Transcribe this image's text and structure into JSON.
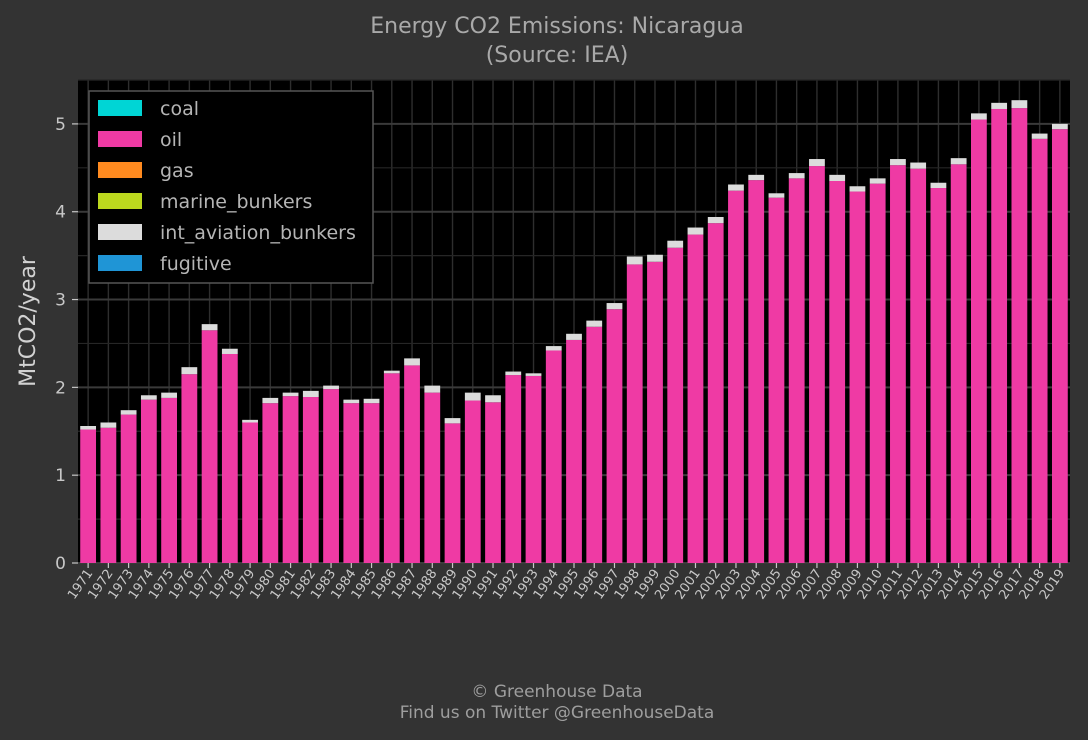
{
  "title": {
    "line1": "Energy CO2 Emissions: Nicaragua",
    "line2": "(Source: IEA)"
  },
  "credits": {
    "line1": "© Greenhouse Data",
    "line2": "Find us on Twitter @GreenhouseData"
  },
  "colors": {
    "background": "#333333",
    "plot_background": "#000000",
    "grid": "#2e2e2e"
  },
  "chart_data": {
    "type": "bar",
    "stacked": true,
    "ylabel": "MtCO2/year",
    "xlabel": "",
    "ylim": [
      0,
      5.5
    ],
    "yticks": [
      0,
      1,
      2,
      3,
      4,
      5
    ],
    "grid": true,
    "legend_position": "top-left",
    "categories": [
      "1971",
      "1972",
      "1973",
      "1974",
      "1975",
      "1976",
      "1977",
      "1978",
      "1979",
      "1980",
      "1981",
      "1982",
      "1983",
      "1984",
      "1985",
      "1986",
      "1987",
      "1988",
      "1989",
      "1990",
      "1991",
      "1992",
      "1993",
      "1994",
      "1995",
      "1996",
      "1997",
      "1998",
      "1999",
      "2000",
      "2001",
      "2002",
      "2003",
      "2004",
      "2005",
      "2006",
      "2007",
      "2008",
      "2009",
      "2010",
      "2011",
      "2012",
      "2013",
      "2014",
      "2015",
      "2016",
      "2017",
      "2018",
      "2019"
    ],
    "series": [
      {
        "name": "coal",
        "color": "#00d5d5",
        "values": [
          0,
          0,
          0,
          0,
          0,
          0,
          0,
          0,
          0,
          0,
          0,
          0,
          0,
          0,
          0,
          0,
          0,
          0,
          0,
          0,
          0,
          0,
          0,
          0,
          0,
          0,
          0,
          0,
          0,
          0,
          0,
          0,
          0,
          0,
          0,
          0,
          0,
          0,
          0,
          0,
          0,
          0,
          0,
          0,
          0,
          0,
          0,
          0,
          0
        ]
      },
      {
        "name": "oil",
        "color": "#ef3aa4",
        "values": [
          1.52,
          1.54,
          1.69,
          1.86,
          1.88,
          2.15,
          2.65,
          2.38,
          1.6,
          1.82,
          1.9,
          1.89,
          1.98,
          1.82,
          1.82,
          2.16,
          2.25,
          1.94,
          1.59,
          1.85,
          1.83,
          2.14,
          2.13,
          2.42,
          2.54,
          2.69,
          2.89,
          3.4,
          3.43,
          3.59,
          3.74,
          3.87,
          4.24,
          4.36,
          4.16,
          4.38,
          4.52,
          4.35,
          4.23,
          4.32,
          4.53,
          4.49,
          4.27,
          4.54,
          5.05,
          5.17,
          5.18,
          4.83,
          4.94
        ]
      },
      {
        "name": "gas",
        "color": "#ff8a1f",
        "values": [
          0,
          0,
          0,
          0,
          0,
          0,
          0,
          0,
          0,
          0,
          0,
          0,
          0,
          0,
          0,
          0,
          0,
          0,
          0,
          0,
          0,
          0,
          0,
          0,
          0,
          0,
          0,
          0,
          0,
          0,
          0,
          0,
          0,
          0,
          0,
          0,
          0,
          0,
          0,
          0,
          0,
          0,
          0,
          0,
          0,
          0,
          0,
          0,
          0
        ]
      },
      {
        "name": "marine_bunkers",
        "color": "#bcd81e",
        "values": [
          0,
          0,
          0,
          0,
          0,
          0,
          0,
          0,
          0,
          0,
          0,
          0,
          0,
          0,
          0,
          0,
          0,
          0,
          0,
          0,
          0,
          0,
          0,
          0,
          0,
          0,
          0,
          0,
          0,
          0,
          0,
          0,
          0,
          0,
          0,
          0,
          0,
          0,
          0,
          0,
          0,
          0,
          0,
          0,
          0,
          0,
          0,
          0,
          0
        ]
      },
      {
        "name": "int_aviation_bunkers",
        "color": "#dcdcdc",
        "values": [
          0.04,
          0.06,
          0.05,
          0.05,
          0.06,
          0.08,
          0.07,
          0.06,
          0.03,
          0.06,
          0.04,
          0.07,
          0.04,
          0.04,
          0.05,
          0.03,
          0.08,
          0.08,
          0.06,
          0.09,
          0.08,
          0.04,
          0.03,
          0.05,
          0.07,
          0.07,
          0.07,
          0.09,
          0.08,
          0.08,
          0.08,
          0.07,
          0.07,
          0.06,
          0.05,
          0.06,
          0.08,
          0.07,
          0.06,
          0.06,
          0.07,
          0.07,
          0.06,
          0.07,
          0.07,
          0.07,
          0.09,
          0.06,
          0.06
        ]
      },
      {
        "name": "fugitive",
        "color": "#1f95d6",
        "values": [
          0,
          0,
          0,
          0,
          0,
          0,
          0,
          0,
          0,
          0,
          0,
          0,
          0,
          0,
          0,
          0,
          0,
          0,
          0,
          0,
          0,
          0,
          0,
          0,
          0,
          0,
          0,
          0,
          0,
          0,
          0,
          0,
          0,
          0,
          0,
          0,
          0,
          0,
          0,
          0,
          0,
          0,
          0,
          0,
          0,
          0,
          0,
          0,
          0
        ]
      }
    ]
  }
}
